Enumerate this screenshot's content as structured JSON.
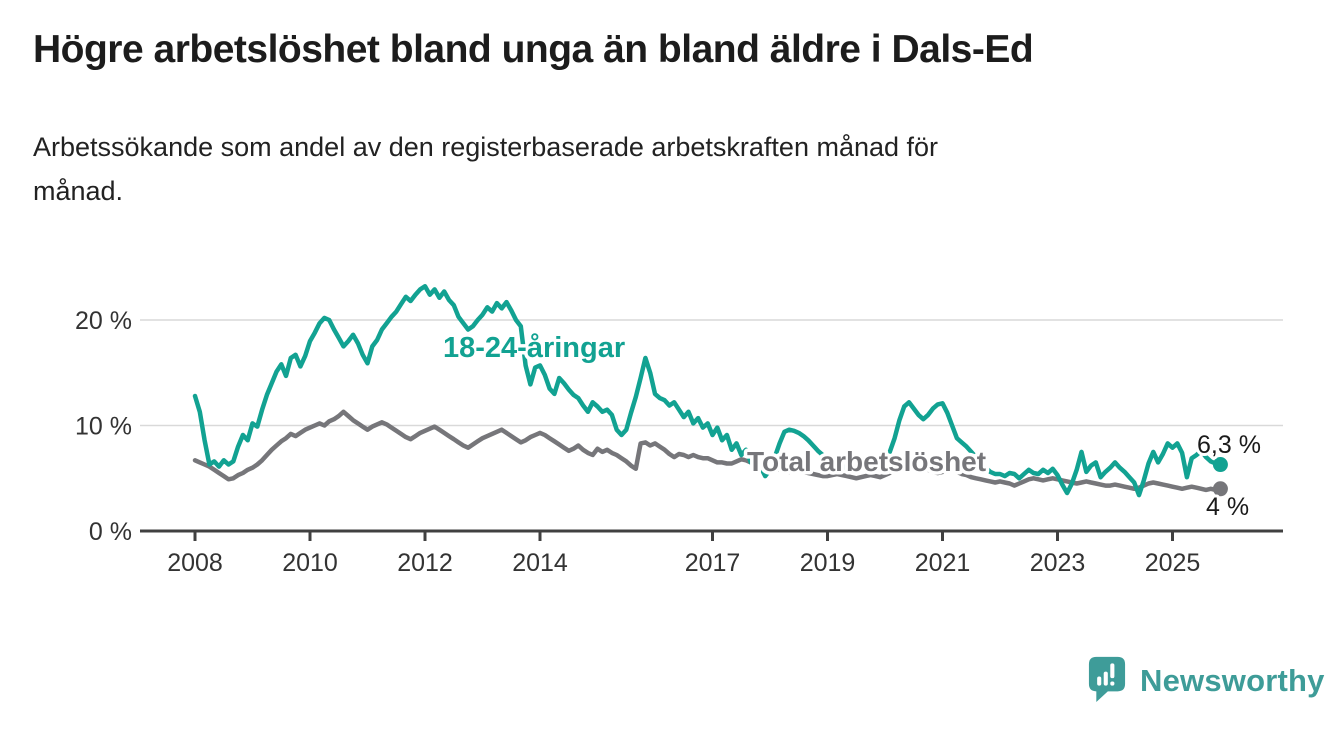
{
  "header": {
    "title": "Högre arbetslöshet bland unga än bland äldre i Dals-Ed",
    "subtitle": "Arbetssökande som andel av den registerbaserade arbetskraften månad för månad.",
    "subtitle_line1": "Arbetssökande som andel av den registerbaserade arbetskraften månad för",
    "subtitle_line2": "månad."
  },
  "footer": {
    "brand": "Newsworthy",
    "logo_icon": "speech-bubble-bar-chart",
    "brand_color": "#3e9c98"
  },
  "colors": {
    "young_line": "#12a292",
    "total_line": "#76767a",
    "gridline": "#d9d9d9",
    "axis": "#404040",
    "text": "#1c1c1c"
  },
  "chart_data": {
    "type": "line",
    "title": "Högre arbetslöshet bland unga än bland äldre i Dals-Ed",
    "subtitle": "Arbetssökande som andel av den registerbaserade arbetskraften månad för månad.",
    "xlabel": "",
    "ylabel": "",
    "ylim": [
      0,
      24
    ],
    "grid": "horizontal",
    "legend_position": "inline-labels",
    "x_unit": "year-month",
    "x_start_year": 2008.0,
    "x_step_months": 1,
    "x_ticks": [
      "2008",
      "2010",
      "2012",
      "2014",
      "2017",
      "2019",
      "2021",
      "2023",
      "2025"
    ],
    "y_ticks": [
      {
        "value": 0,
        "label": "0 %"
      },
      {
        "value": 10,
        "label": "10 %"
      },
      {
        "value": 20,
        "label": "20 %"
      }
    ],
    "series": [
      {
        "id": "young",
        "name": "18-24-åringar",
        "color": "#12a292",
        "end_label": "6,3 %",
        "end_value": 6.3,
        "values": [
          12.8,
          11.3,
          8.6,
          6.3,
          6.6,
          6.1,
          6.7,
          6.3,
          6.6,
          8.0,
          9.1,
          8.6,
          10.2,
          9.9,
          11.5,
          12.9,
          14.0,
          15.1,
          15.8,
          14.7,
          16.4,
          16.7,
          15.6,
          16.6,
          18.0,
          18.8,
          19.7,
          20.2,
          20.0,
          19.1,
          18.3,
          17.5,
          18.0,
          18.6,
          17.8,
          16.7,
          15.9,
          17.5,
          18.1,
          19.1,
          19.7,
          20.3,
          20.8,
          21.5,
          22.2,
          21.8,
          22.4,
          22.9,
          23.2,
          22.4,
          22.9,
          22.1,
          22.7,
          21.9,
          21.4,
          20.3,
          19.7,
          19.1,
          19.4,
          20.0,
          20.5,
          21.2,
          20.8,
          21.6,
          21.1,
          21.7,
          20.9,
          20.0,
          19.4,
          15.7,
          13.9,
          15.5,
          15.7,
          14.8,
          13.5,
          13.0,
          14.5,
          14.0,
          13.4,
          12.9,
          12.6,
          11.9,
          11.3,
          12.2,
          11.8,
          11.3,
          11.5,
          11.0,
          9.6,
          9.1,
          9.6,
          11.2,
          12.7,
          14.5,
          16.4,
          15.0,
          13.0,
          12.6,
          12.4,
          11.9,
          12.2,
          11.5,
          10.8,
          11.3,
          10.2,
          10.7,
          9.8,
          10.2,
          9.1,
          9.8,
          8.6,
          9.1,
          7.7,
          8.3,
          7.2,
          7.7,
          6.5,
          7.2,
          6.1,
          5.2,
          5.8,
          7.0,
          8.3,
          9.4,
          9.6,
          9.5,
          9.3,
          9.0,
          8.6,
          8.1,
          7.6,
          7.2,
          6.8,
          6.4,
          6.1,
          5.9,
          6.2,
          6.5,
          6.2,
          5.9,
          6.3,
          6.7,
          6.4,
          6.2,
          6.5,
          7.5,
          8.8,
          10.5,
          11.8,
          12.2,
          11.6,
          11.0,
          10.6,
          11.0,
          11.6,
          12.0,
          12.1,
          11.2,
          10.0,
          8.8,
          8.4,
          8.0,
          7.5,
          7.0,
          6.5,
          6.0,
          5.6,
          5.4,
          5.4,
          5.2,
          5.5,
          5.4,
          5.0,
          5.4,
          5.8,
          5.5,
          5.4,
          5.8,
          5.5,
          5.9,
          5.3,
          4.4,
          3.6,
          4.5,
          5.8,
          7.5,
          5.6,
          6.2,
          6.5,
          5.1,
          5.6,
          6.0,
          6.5,
          6.0,
          5.6,
          5.1,
          4.6,
          3.4,
          4.8,
          6.4,
          7.5,
          6.5,
          7.3,
          8.3,
          7.9,
          8.3,
          7.4,
          5.1,
          6.9,
          7.2,
          7.6,
          7.0,
          6.6,
          6.4,
          6.3
        ]
      },
      {
        "id": "total",
        "name": "Total arbetslöshet",
        "color": "#76767a",
        "end_label": "4 %",
        "end_value": 4.0,
        "values": [
          6.7,
          6.5,
          6.3,
          6.1,
          5.8,
          5.5,
          5.2,
          4.9,
          5.0,
          5.3,
          5.5,
          5.8,
          6.0,
          6.3,
          6.7,
          7.2,
          7.7,
          8.1,
          8.5,
          8.8,
          9.2,
          9.0,
          9.3,
          9.6,
          9.8,
          10.0,
          10.2,
          10.0,
          10.4,
          10.6,
          10.9,
          11.3,
          10.9,
          10.5,
          10.2,
          9.9,
          9.6,
          9.9,
          10.1,
          10.3,
          10.1,
          9.8,
          9.5,
          9.2,
          8.9,
          8.7,
          9.0,
          9.3,
          9.5,
          9.7,
          9.9,
          9.6,
          9.3,
          9.0,
          8.7,
          8.4,
          8.1,
          7.9,
          8.2,
          8.5,
          8.8,
          9.0,
          9.2,
          9.4,
          9.6,
          9.3,
          9.0,
          8.7,
          8.4,
          8.6,
          8.9,
          9.1,
          9.3,
          9.1,
          8.8,
          8.5,
          8.2,
          7.9,
          7.6,
          7.8,
          8.1,
          7.7,
          7.4,
          7.2,
          7.8,
          7.5,
          7.7,
          7.4,
          7.2,
          6.9,
          6.6,
          6.2,
          5.9,
          8.3,
          8.4,
          8.1,
          8.3,
          8.0,
          7.7,
          7.3,
          7.0,
          7.3,
          7.2,
          7.0,
          7.2,
          7.0,
          6.9,
          6.9,
          6.7,
          6.5,
          6.5,
          6.4,
          6.4,
          6.6,
          6.8,
          6.7,
          6.5,
          6.4,
          6.3,
          6.2,
          6.1,
          5.9,
          5.8,
          5.7,
          5.6,
          5.7,
          5.8,
          5.6,
          5.5,
          5.4,
          5.3,
          5.2,
          5.2,
          5.3,
          5.4,
          5.3,
          5.2,
          5.1,
          5.0,
          5.1,
          5.2,
          5.3,
          5.2,
          5.1,
          5.3,
          5.5,
          5.8,
          6.1,
          6.3,
          6.4,
          6.3,
          6.1,
          5.9,
          5.8,
          5.6,
          5.5,
          5.6,
          5.7,
          5.8,
          5.6,
          5.4,
          5.3,
          5.1,
          5.0,
          4.9,
          4.8,
          4.7,
          4.6,
          4.7,
          4.6,
          4.5,
          4.3,
          4.5,
          4.7,
          4.9,
          5.0,
          4.9,
          4.8,
          4.9,
          5.0,
          4.9,
          4.8,
          4.7,
          4.6,
          4.5,
          4.6,
          4.7,
          4.6,
          4.5,
          4.4,
          4.3,
          4.3,
          4.4,
          4.3,
          4.2,
          4.1,
          4.0,
          4.1,
          4.3,
          4.5,
          4.6,
          4.5,
          4.4,
          4.3,
          4.2,
          4.1,
          4.0,
          4.1,
          4.2,
          4.1,
          4.0,
          3.9,
          4.0,
          3.9,
          4.0
        ]
      }
    ]
  }
}
